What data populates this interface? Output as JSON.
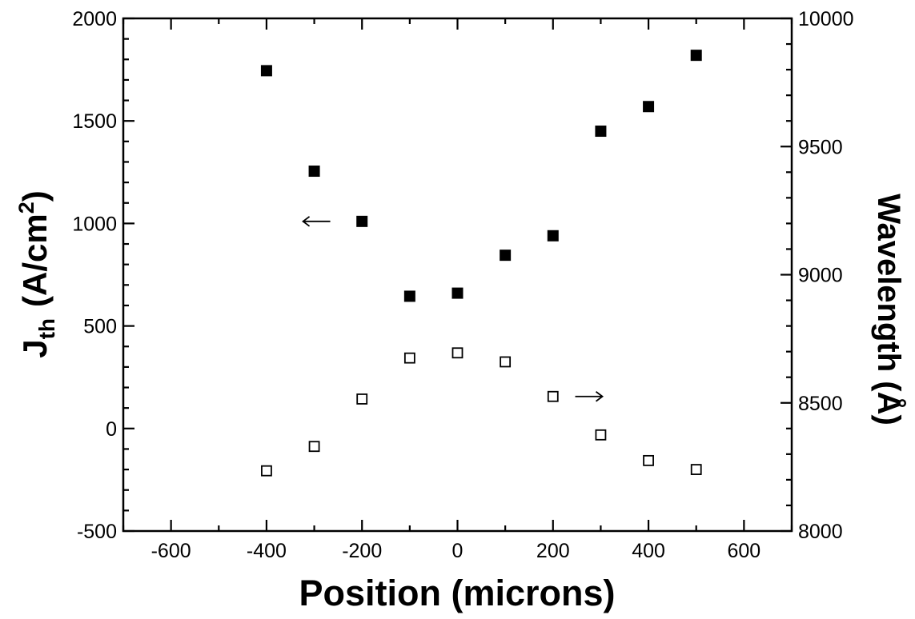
{
  "chart_data": {
    "type": "scatter",
    "xlabel": "Position (microns)",
    "ylabel_left": {
      "main": "J",
      "sub": "th",
      "paren_open": "(A/cm",
      "sup": "2",
      "paren_close": ")"
    },
    "ylabel_right": "Wavelength (Å)",
    "xlim": [
      -700,
      700
    ],
    "ylim_left": [
      -500,
      2000
    ],
    "ylim_right": [
      8000,
      10000
    ],
    "x_ticks": [
      -600,
      -400,
      -200,
      0,
      200,
      400,
      600
    ],
    "x_tick_labels": [
      "-600",
      "-400",
      "-200",
      "0",
      "200",
      "400",
      "600"
    ],
    "y_left_ticks": [
      -500,
      0,
      500,
      1000,
      1500,
      2000
    ],
    "y_left_tick_labels": [
      "-500",
      "0",
      "500",
      "1000",
      "1500",
      "2000"
    ],
    "y_right_ticks": [
      8000,
      8500,
      9000,
      9500,
      10000
    ],
    "y_right_tick_labels": [
      "8000",
      "8500",
      "9000",
      "9500",
      "10000"
    ],
    "series": [
      {
        "axis": "left",
        "marker": "filled-square",
        "x": [
          -400,
          -300,
          -200,
          -100,
          0,
          100,
          200,
          300,
          400,
          500
        ],
        "y": [
          1745,
          1255,
          1010,
          645,
          660,
          845,
          940,
          1450,
          1570,
          1820
        ]
      },
      {
        "axis": "right",
        "marker": "open-square",
        "x": [
          -400,
          -300,
          -200,
          -100,
          0,
          100,
          200,
          300,
          400,
          500
        ],
        "y": [
          8235,
          8330,
          8515,
          8675,
          8695,
          8660,
          8525,
          8375,
          8275,
          8240
        ]
      }
    ],
    "annotations": [
      {
        "text": "←",
        "x": -295,
        "y": 1010,
        "axis": "left",
        "points_to": "left axis"
      },
      {
        "text": "→",
        "x": 275,
        "y": 8525,
        "axis": "right",
        "points_to": "right axis"
      }
    ],
    "grid": false,
    "legend": "none"
  }
}
